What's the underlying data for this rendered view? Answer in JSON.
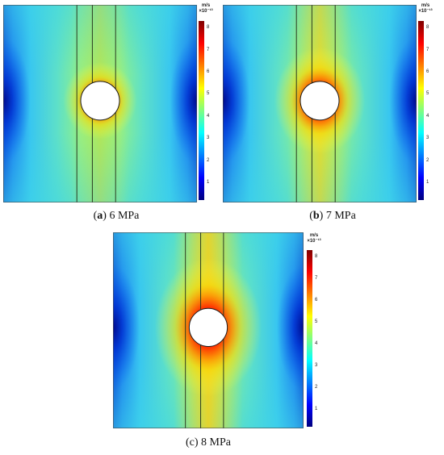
{
  "colorbar": {
    "unit": "m/s",
    "scale": "×10⁻¹³",
    "ticks": [
      "8",
      "7",
      "6",
      "5",
      "4",
      "3",
      "2",
      "1"
    ],
    "colors": [
      "#00007f",
      "#0000ff",
      "#0080ff",
      "#00ffff",
      "#80ff80",
      "#ffff00",
      "#ff8000",
      "#ff0000",
      "#7f0000"
    ]
  },
  "panels": [
    {
      "id": "a",
      "letter": "a",
      "label": "6 MPa",
      "pressure": 6
    },
    {
      "id": "b",
      "letter": "b",
      "label": "7 MPa",
      "pressure": 7
    },
    {
      "id": "c",
      "letter": "c",
      "label": "8 MPa",
      "pressure": 8
    }
  ]
}
